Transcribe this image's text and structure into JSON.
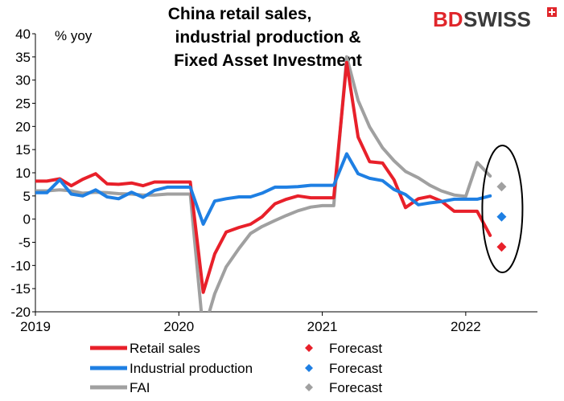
{
  "logo": {
    "text_left": "BD",
    "text_right": "SWISS",
    "color_left": "#e0262b",
    "color_right": "#3a3a3a",
    "badge_color": "#e0262b"
  },
  "chart_data": {
    "type": "line",
    "title_lines": [
      "China retail sales,",
      "industrial production &",
      "Fixed Asset Investment"
    ],
    "unit_label": "% yoy",
    "xlabel": "",
    "ylabel": "",
    "ylim": [
      -20,
      40
    ],
    "yticks": [
      40,
      35,
      30,
      25,
      20,
      15,
      10,
      5,
      0,
      -5,
      -10,
      -15,
      -20
    ],
    "xlim": [
      2019.0,
      2022.5
    ],
    "xticks": [
      2019,
      2020,
      2021,
      2022
    ],
    "grid": false,
    "legend_placement": "bottom",
    "series": [
      {
        "name": "Retail sales",
        "color": "#e8202a",
        "points": [
          [
            2019.0,
            8.2
          ],
          [
            2019.08,
            8.2
          ],
          [
            2019.17,
            8.7
          ],
          [
            2019.25,
            7.2
          ],
          [
            2019.33,
            8.6
          ],
          [
            2019.42,
            9.8
          ],
          [
            2019.5,
            7.6
          ],
          [
            2019.58,
            7.5
          ],
          [
            2019.67,
            7.8
          ],
          [
            2019.75,
            7.2
          ],
          [
            2019.83,
            8.0
          ],
          [
            2019.92,
            8.0
          ],
          [
            2020.0,
            8.0
          ],
          [
            2020.08,
            8.0
          ],
          [
            2020.17,
            -15.8
          ],
          [
            2020.25,
            -7.5
          ],
          [
            2020.33,
            -2.8
          ],
          [
            2020.42,
            -1.8
          ],
          [
            2020.5,
            -1.1
          ],
          [
            2020.58,
            0.5
          ],
          [
            2020.67,
            3.3
          ],
          [
            2020.75,
            4.3
          ],
          [
            2020.83,
            5.0
          ],
          [
            2020.92,
            4.6
          ],
          [
            2021.0,
            4.6
          ],
          [
            2021.08,
            4.6
          ],
          [
            2021.17,
            33.8
          ],
          [
            2021.25,
            17.7
          ],
          [
            2021.33,
            12.4
          ],
          [
            2021.42,
            12.1
          ],
          [
            2021.5,
            8.5
          ],
          [
            2021.58,
            2.5
          ],
          [
            2021.67,
            4.4
          ],
          [
            2021.75,
            4.9
          ],
          [
            2021.83,
            3.9
          ],
          [
            2021.92,
            1.7
          ],
          [
            2022.0,
            1.7
          ],
          [
            2022.08,
            1.7
          ],
          [
            2022.17,
            -3.5
          ]
        ]
      },
      {
        "name": "Industrial production",
        "color": "#1e7fe3",
        "points": [
          [
            2019.0,
            5.7
          ],
          [
            2019.08,
            5.7
          ],
          [
            2019.17,
            8.5
          ],
          [
            2019.25,
            5.4
          ],
          [
            2019.33,
            5.0
          ],
          [
            2019.42,
            6.3
          ],
          [
            2019.5,
            4.8
          ],
          [
            2019.58,
            4.4
          ],
          [
            2019.67,
            5.8
          ],
          [
            2019.75,
            4.7
          ],
          [
            2019.83,
            6.2
          ],
          [
            2019.92,
            6.9
          ],
          [
            2020.0,
            6.9
          ],
          [
            2020.08,
            6.9
          ],
          [
            2020.17,
            -1.1
          ],
          [
            2020.25,
            3.9
          ],
          [
            2020.33,
            4.4
          ],
          [
            2020.42,
            4.8
          ],
          [
            2020.5,
            4.8
          ],
          [
            2020.58,
            5.6
          ],
          [
            2020.67,
            6.9
          ],
          [
            2020.75,
            6.9
          ],
          [
            2020.83,
            7.0
          ],
          [
            2020.92,
            7.3
          ],
          [
            2021.0,
            7.3
          ],
          [
            2021.08,
            7.3
          ],
          [
            2021.17,
            14.1
          ],
          [
            2021.25,
            9.8
          ],
          [
            2021.33,
            8.8
          ],
          [
            2021.42,
            8.3
          ],
          [
            2021.5,
            6.4
          ],
          [
            2021.58,
            5.3
          ],
          [
            2021.67,
            3.1
          ],
          [
            2021.75,
            3.5
          ],
          [
            2021.83,
            3.8
          ],
          [
            2021.92,
            4.3
          ],
          [
            2022.0,
            4.3
          ],
          [
            2022.08,
            4.3
          ],
          [
            2022.17,
            5.0
          ]
        ]
      },
      {
        "name": "FAI",
        "color": "#a0a0a0",
        "points": [
          [
            2019.0,
            6.1
          ],
          [
            2019.08,
            6.1
          ],
          [
            2019.17,
            6.3
          ],
          [
            2019.25,
            6.1
          ],
          [
            2019.33,
            5.6
          ],
          [
            2019.42,
            5.8
          ],
          [
            2019.5,
            5.7
          ],
          [
            2019.58,
            5.5
          ],
          [
            2019.67,
            5.4
          ],
          [
            2019.75,
            5.2
          ],
          [
            2019.83,
            5.2
          ],
          [
            2019.92,
            5.4
          ],
          [
            2020.0,
            5.4
          ],
          [
            2020.08,
            5.4
          ],
          [
            2020.17,
            -24.5
          ],
          [
            2020.25,
            -16.1
          ],
          [
            2020.33,
            -10.3
          ],
          [
            2020.42,
            -6.3
          ],
          [
            2020.5,
            -3.1
          ],
          [
            2020.58,
            -1.6
          ],
          [
            2020.67,
            -0.3
          ],
          [
            2020.75,
            0.8
          ],
          [
            2020.83,
            1.8
          ],
          [
            2020.92,
            2.6
          ],
          [
            2021.0,
            2.9
          ],
          [
            2021.08,
            2.9
          ],
          [
            2021.17,
            35.0
          ],
          [
            2021.25,
            25.6
          ],
          [
            2021.33,
            19.9
          ],
          [
            2021.42,
            15.4
          ],
          [
            2021.5,
            12.6
          ],
          [
            2021.58,
            10.3
          ],
          [
            2021.67,
            8.9
          ],
          [
            2021.75,
            7.3
          ],
          [
            2021.83,
            6.1
          ],
          [
            2021.92,
            5.2
          ],
          [
            2022.0,
            4.9
          ],
          [
            2022.08,
            12.2
          ],
          [
            2022.17,
            9.3
          ]
        ]
      }
    ],
    "forecasts": [
      {
        "series": "Retail sales",
        "label": "Forecast",
        "x": 2022.25,
        "y": -6.0,
        "color": "#e8202a"
      },
      {
        "series": "Industrial production",
        "label": "Forecast",
        "x": 2022.25,
        "y": 0.5,
        "color": "#1e7fe3"
      },
      {
        "series": "FAI",
        "label": "Forecast",
        "x": 2022.25,
        "y": 7.0,
        "color": "#a0a0a0"
      }
    ],
    "annotations": [
      {
        "type": "ellipse",
        "around": "forecasts"
      }
    ]
  }
}
